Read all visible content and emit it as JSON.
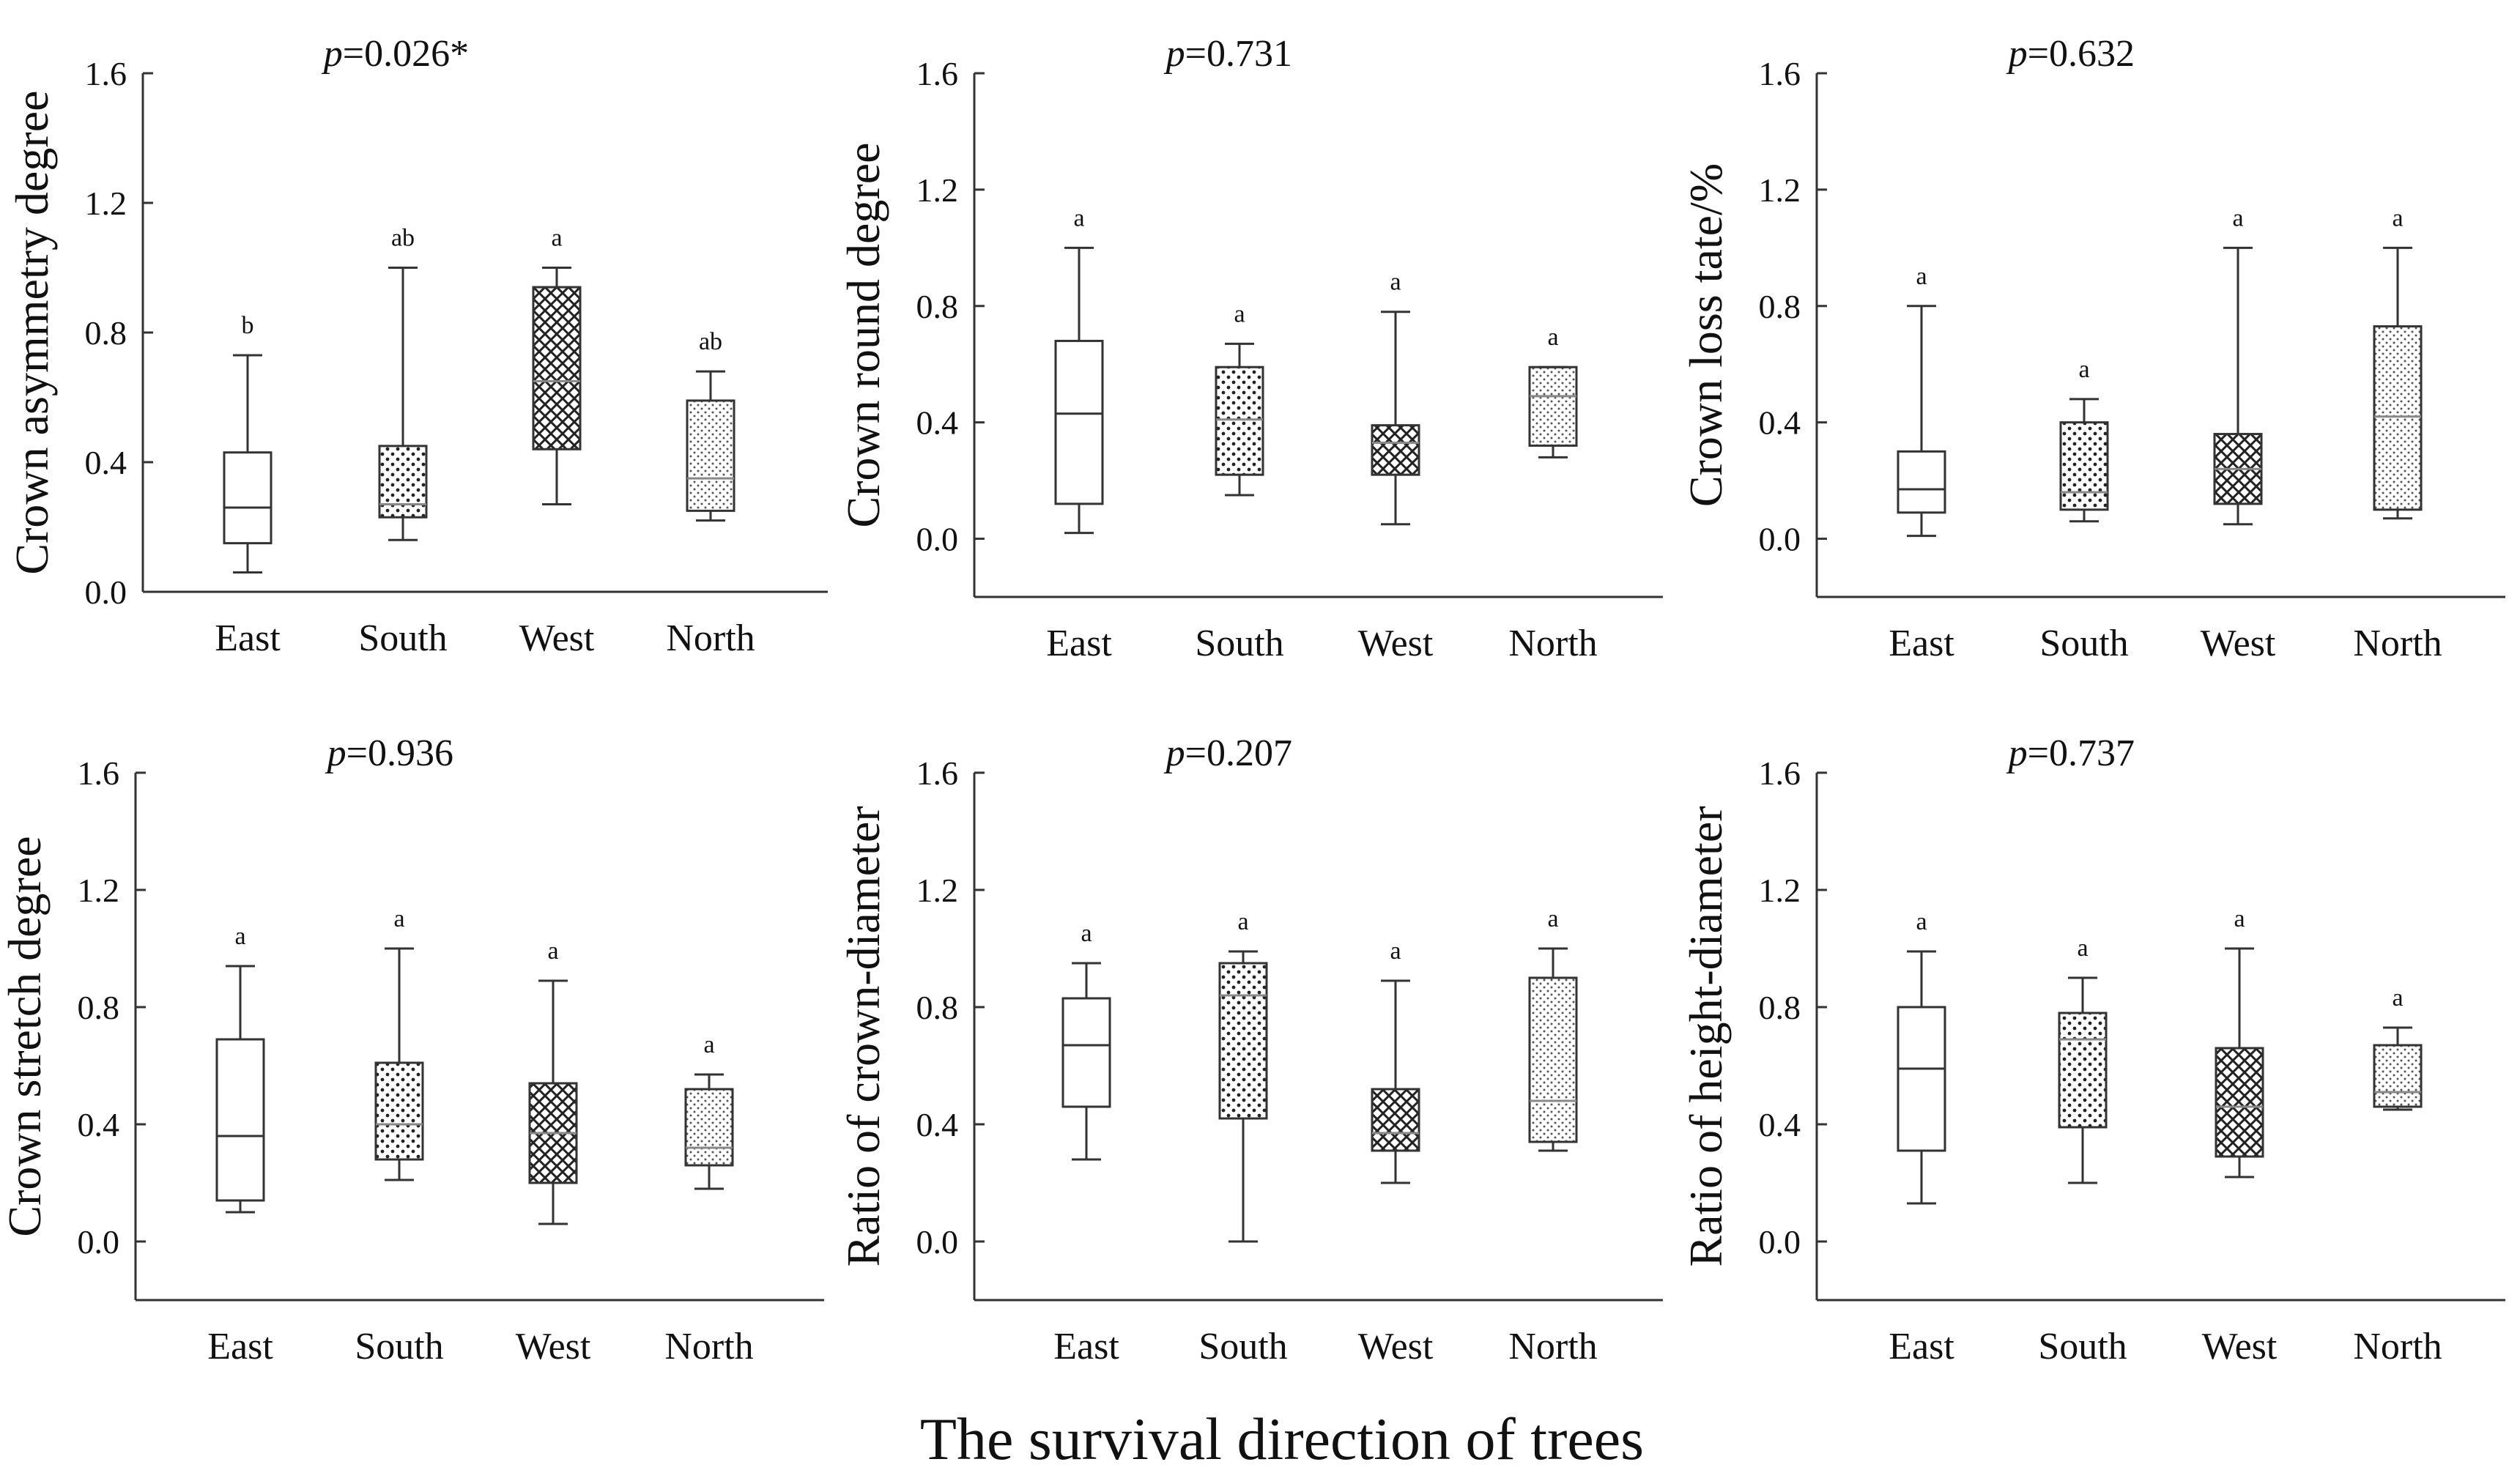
{
  "figure": {
    "x_axis_title": "The survival direction of trees"
  },
  "patterns": {
    "East": "none",
    "South": "dots",
    "West": "crosshatch",
    "North": "fine-dots"
  },
  "chart_data": [
    {
      "type": "box",
      "title_prefix": "p",
      "title_value": "=0.026*",
      "ylabel": "Crown asymmetry  degree",
      "ylim": [
        0.0,
        1.6
      ],
      "yticks": [
        "0.0",
        "0.4",
        "0.8",
        "1.2",
        "1.6"
      ],
      "categories": [
        "East",
        "South",
        "West",
        "North"
      ],
      "boxes": [
        {
          "min": 0.06,
          "q1": 0.15,
          "median": 0.26,
          "q3": 0.43,
          "max": 0.73,
          "sig": "b"
        },
        {
          "min": 0.16,
          "q1": 0.23,
          "median": 0.27,
          "q3": 0.45,
          "max": 1.0,
          "sig": "ab"
        },
        {
          "min": 0.27,
          "q1": 0.44,
          "median": 0.65,
          "q3": 0.94,
          "max": 1.0,
          "sig": "a"
        },
        {
          "min": 0.22,
          "q1": 0.25,
          "median": 0.35,
          "q3": 0.59,
          "max": 0.68,
          "sig": "ab"
        }
      ]
    },
    {
      "type": "box",
      "title_prefix": "p",
      "title_value": "=0.731",
      "ylabel": "Crown round degree",
      "ylim": [
        -0.2,
        1.6
      ],
      "yticks": [
        "0.0",
        "0.4",
        "0.8",
        "1.2",
        "1.6"
      ],
      "categories": [
        "East",
        "South",
        "West",
        "North"
      ],
      "boxes": [
        {
          "min": 0.02,
          "q1": 0.12,
          "median": 0.43,
          "q3": 0.68,
          "max": 1.0,
          "sig": "a"
        },
        {
          "min": 0.15,
          "q1": 0.22,
          "median": 0.41,
          "q3": 0.59,
          "max": 0.67,
          "sig": "a"
        },
        {
          "min": 0.05,
          "q1": 0.22,
          "median": 0.33,
          "q3": 0.39,
          "max": 0.78,
          "sig": "a"
        },
        {
          "min": 0.28,
          "q1": 0.32,
          "median": 0.49,
          "q3": 0.59,
          "max": 0.59,
          "sig": "a"
        }
      ]
    },
    {
      "type": "box",
      "title_prefix": "p",
      "title_value": "=0.632",
      "ylabel": "Crown loss tate/%",
      "ylim": [
        -0.2,
        1.6
      ],
      "yticks": [
        "0.0",
        "0.4",
        "0.8",
        "1.2",
        "1.6"
      ],
      "categories": [
        "East",
        "South",
        "West",
        "North"
      ],
      "boxes": [
        {
          "min": 0.01,
          "q1": 0.09,
          "median": 0.17,
          "q3": 0.3,
          "max": 0.8,
          "sig": "a"
        },
        {
          "min": 0.06,
          "q1": 0.1,
          "median": 0.16,
          "q3": 0.4,
          "max": 0.48,
          "sig": "a"
        },
        {
          "min": 0.05,
          "q1": 0.12,
          "median": 0.24,
          "q3": 0.36,
          "max": 1.0,
          "sig": "a"
        },
        {
          "min": 0.07,
          "q1": 0.1,
          "median": 0.42,
          "q3": 0.73,
          "max": 1.0,
          "sig": "a"
        }
      ]
    },
    {
      "type": "box",
      "title_prefix": "p",
      "title_value": "=0.936",
      "ylabel": "Crown stretch degree",
      "ylim": [
        -0.2,
        1.6
      ],
      "yticks": [
        "0.0",
        "0.4",
        "0.8",
        "1.2",
        "1.6"
      ],
      "categories": [
        "East",
        "South",
        "West",
        "North"
      ],
      "boxes": [
        {
          "min": 0.1,
          "q1": 0.14,
          "median": 0.36,
          "q3": 0.69,
          "max": 0.94,
          "sig": "a"
        },
        {
          "min": 0.21,
          "q1": 0.28,
          "median": 0.4,
          "q3": 0.61,
          "max": 1.0,
          "sig": "a"
        },
        {
          "min": 0.06,
          "q1": 0.2,
          "median": 0.37,
          "q3": 0.54,
          "max": 0.89,
          "sig": "a"
        },
        {
          "min": 0.18,
          "q1": 0.26,
          "median": 0.32,
          "q3": 0.52,
          "max": 0.57,
          "sig": "a"
        }
      ]
    },
    {
      "type": "box",
      "title_prefix": "p",
      "title_value": "=0.207",
      "ylabel": "Ratio of crown-diameter",
      "ylim": [
        -0.2,
        1.6
      ],
      "yticks": [
        "0.0",
        "0.4",
        "0.8",
        "1.2",
        "1.6"
      ],
      "categories": [
        "East",
        "South",
        "West",
        "North"
      ],
      "boxes": [
        {
          "min": 0.28,
          "q1": 0.46,
          "median": 0.67,
          "q3": 0.83,
          "max": 0.95,
          "sig": "a"
        },
        {
          "min": 0.0,
          "q1": 0.42,
          "median": 0.84,
          "q3": 0.95,
          "max": 0.99,
          "sig": "a"
        },
        {
          "min": 0.2,
          "q1": 0.31,
          "median": 0.37,
          "q3": 0.52,
          "max": 0.89,
          "sig": "a"
        },
        {
          "min": 0.31,
          "q1": 0.34,
          "median": 0.48,
          "q3": 0.9,
          "max": 1.0,
          "sig": "a"
        }
      ]
    },
    {
      "type": "box",
      "title_prefix": "p",
      "title_value": "=0.737",
      "ylabel": "Ratio of height-diameter",
      "ylim": [
        -0.2,
        1.6
      ],
      "yticks": [
        "0.0",
        "0.4",
        "0.8",
        "1.2",
        "1.6"
      ],
      "categories": [
        "East",
        "South",
        "West",
        "North"
      ],
      "boxes": [
        {
          "min": 0.13,
          "q1": 0.31,
          "median": 0.59,
          "q3": 0.8,
          "max": 0.99,
          "sig": "a"
        },
        {
          "min": 0.2,
          "q1": 0.39,
          "median": 0.69,
          "q3": 0.78,
          "max": 0.9,
          "sig": "a"
        },
        {
          "min": 0.22,
          "q1": 0.29,
          "median": 0.46,
          "q3": 0.66,
          "max": 1.0,
          "sig": "a"
        },
        {
          "min": 0.45,
          "q1": 0.46,
          "median": 0.51,
          "q3": 0.67,
          "max": 0.73,
          "sig": "a"
        }
      ]
    }
  ]
}
